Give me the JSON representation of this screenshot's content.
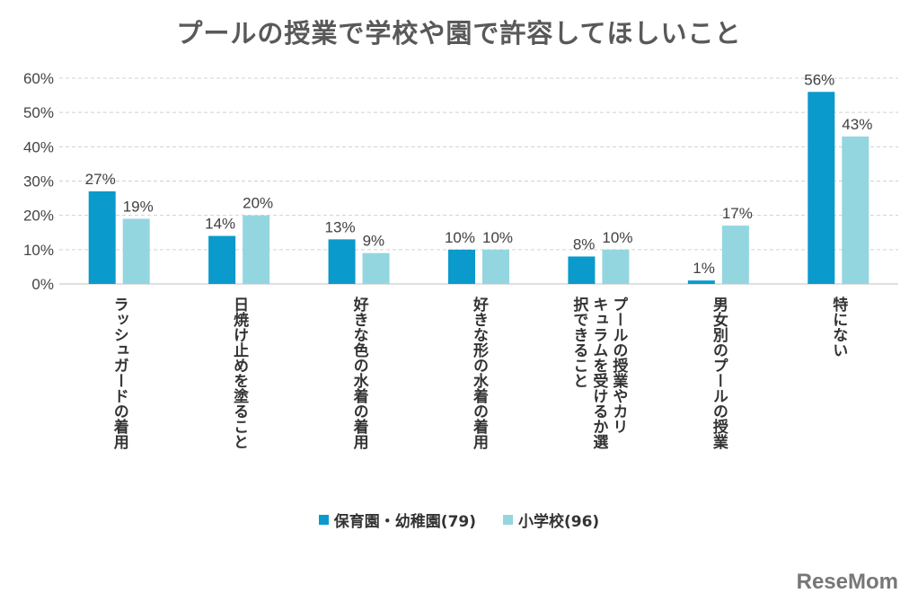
{
  "chart_data": {
    "type": "bar",
    "title": "プールの授業で学校や園で許容してほしいこと",
    "categories": [
      "ラッシュガードの着用",
      "日焼け止めを塗ること",
      "好きな色の水着の着用",
      "好きな形の水着の着用",
      "プールの授業やカリ\nキュラムを受けるか選\n択できること",
      "男女別のプールの授業",
      "特にない"
    ],
    "series": [
      {
        "name": "保育園・幼稚園(79)",
        "color": "#0a9acb",
        "values": [
          27,
          14,
          13,
          10,
          8,
          1,
          56
        ]
      },
      {
        "name": "小学校(96)",
        "color": "#93d6df",
        "values": [
          19,
          20,
          9,
          10,
          10,
          17,
          43
        ]
      }
    ],
    "ylim": [
      0,
      60
    ],
    "yticks": [
      "0%",
      "10%",
      "20%",
      "30%",
      "40%",
      "50%",
      "60%"
    ],
    "grid": true,
    "legend": "bottom"
  },
  "logo": "ReseMom"
}
